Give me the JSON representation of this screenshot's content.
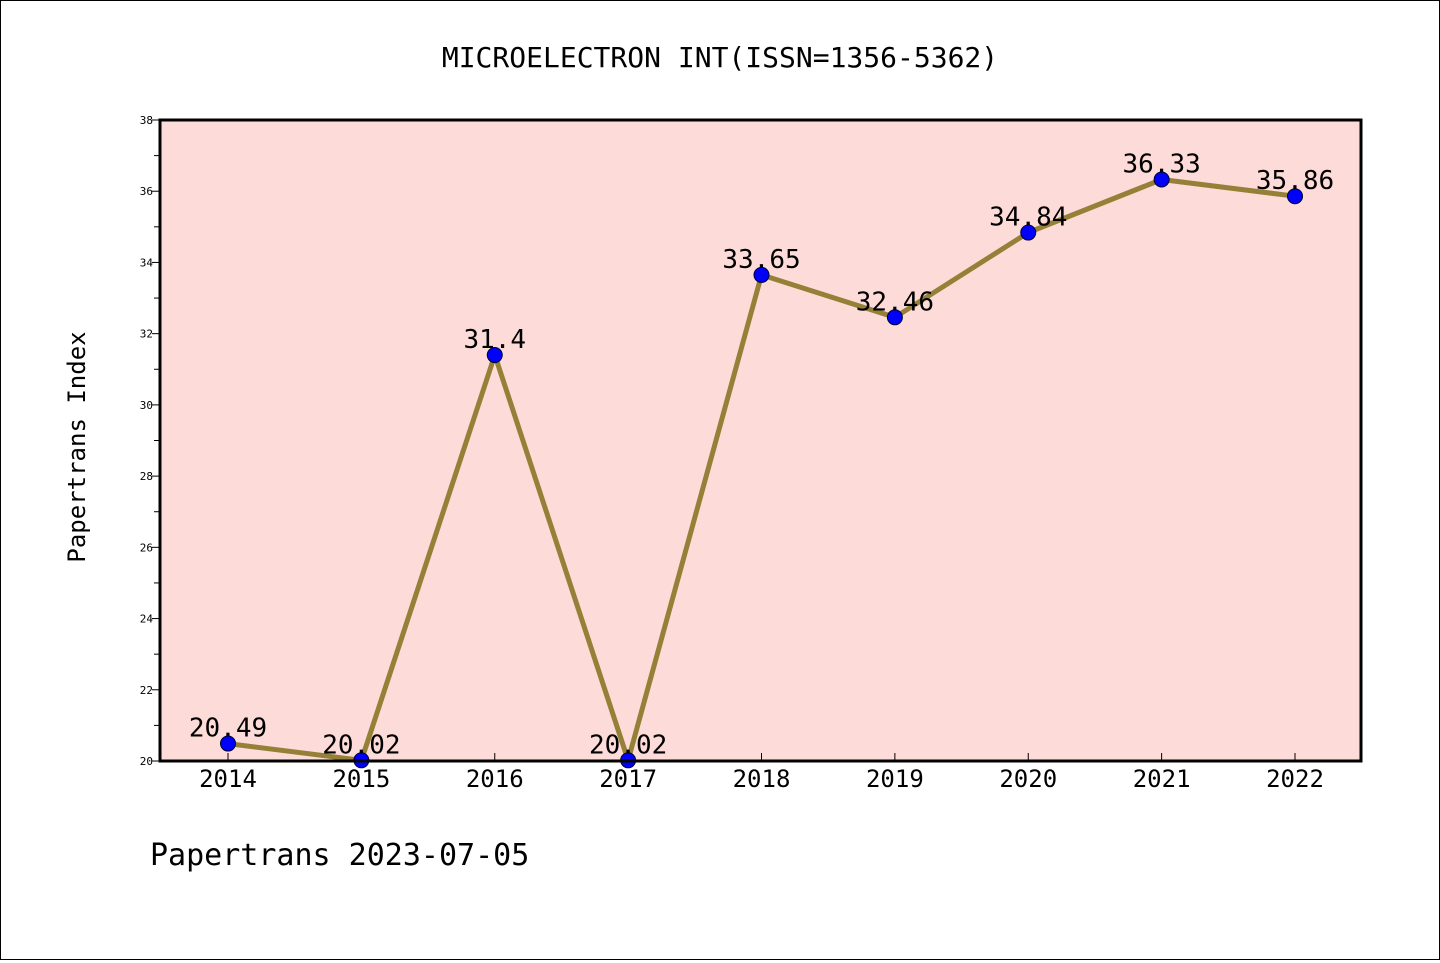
{
  "chart_data": {
    "type": "line",
    "title": "MICROELECTRON INT(ISSN=1356-5362)",
    "xlabel": "",
    "ylabel": "Papertrans Index",
    "x": [
      "2014",
      "2015",
      "2016",
      "2017",
      "2018",
      "2019",
      "2020",
      "2021",
      "2022"
    ],
    "series": [
      {
        "values": [
          20.49,
          20.02,
          31.4,
          20.02,
          33.65,
          32.46,
          34.84,
          36.33,
          35.86
        ]
      }
    ],
    "data_labels": [
      "20.49",
      "20.02",
      "31.4",
      "20.02",
      "33.65",
      "32.46",
      "34.84",
      "36.33",
      "35.86"
    ],
    "ylim": [
      20,
      38
    ],
    "y_ticks": [
      20,
      22,
      24,
      26,
      28,
      30,
      32,
      34,
      36,
      38
    ],
    "y_tick_labels": [
      "20",
      "22",
      "24",
      "26",
      "28",
      "30",
      "32",
      "34",
      "36",
      "38"
    ],
    "grid": false,
    "legend": "none",
    "colors": {
      "plot_background": "#fddbd8",
      "line": "#948036",
      "marker": "#0000ff"
    }
  },
  "footer": {
    "text": "Papertrans 2023-07-05"
  }
}
